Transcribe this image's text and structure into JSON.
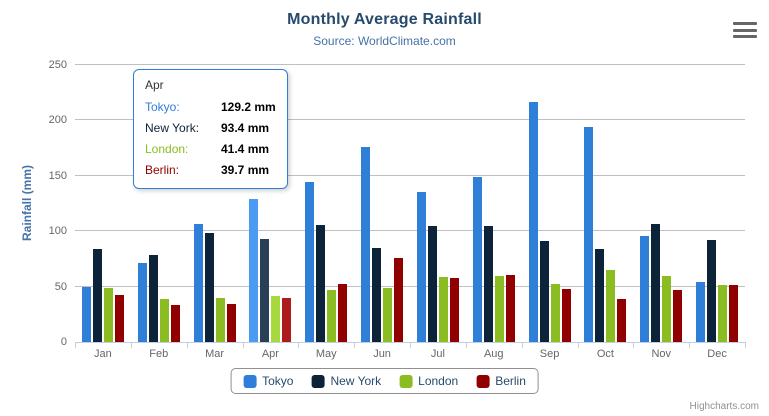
{
  "chart": {
    "credits": "Highcharts.com"
  },
  "chart_data": {
    "type": "bar",
    "title": "Monthly Average Rainfall",
    "subtitle": "Source: WorldClimate.com",
    "xlabel": "",
    "ylabel": "Rainfall (mm)",
    "ylim": [
      0,
      250
    ],
    "yticks": [
      0,
      50,
      100,
      150,
      200,
      250
    ],
    "grid": "horizontal",
    "legend_position": "bottom",
    "hovered_category": "Apr",
    "categories": [
      "Jan",
      "Feb",
      "Mar",
      "Apr",
      "May",
      "Jun",
      "Jul",
      "Aug",
      "Sep",
      "Oct",
      "Nov",
      "Dec"
    ],
    "series": [
      {
        "name": "Tokyo",
        "color": "#2f7ed8",
        "values": [
          49.9,
          71.5,
          106.4,
          129.2,
          144.0,
          176.0,
          135.6,
          148.5,
          216.4,
          194.1,
          95.6,
          54.4
        ]
      },
      {
        "name": "New York",
        "color": "#0d233a",
        "values": [
          83.6,
          78.8,
          98.5,
          93.4,
          106.0,
          84.5,
          105.0,
          104.3,
          91.2,
          83.5,
          106.6,
          92.3
        ]
      },
      {
        "name": "London",
        "color": "#8bbc21",
        "values": [
          48.9,
          38.8,
          39.3,
          41.4,
          47.0,
          48.3,
          59.0,
          59.6,
          52.4,
          65.2,
          59.3,
          51.2
        ]
      },
      {
        "name": "Berlin",
        "color": "#910000",
        "values": [
          42.4,
          33.2,
          34.5,
          39.7,
          52.6,
          75.5,
          57.4,
          60.4,
          47.6,
          39.1,
          46.8,
          51.1
        ]
      }
    ]
  },
  "tooltip": {
    "header": "Apr",
    "rows": [
      {
        "label": "Tokyo:",
        "value": "129.2 mm",
        "color": "#2f7ed8"
      },
      {
        "label": "New York:",
        "value": "93.4 mm",
        "color": "#0d233a"
      },
      {
        "label": "London:",
        "value": "41.4 mm",
        "color": "#8bbc21"
      },
      {
        "label": "Berlin:",
        "value": "39.7 mm",
        "color": "#910000"
      }
    ]
  }
}
